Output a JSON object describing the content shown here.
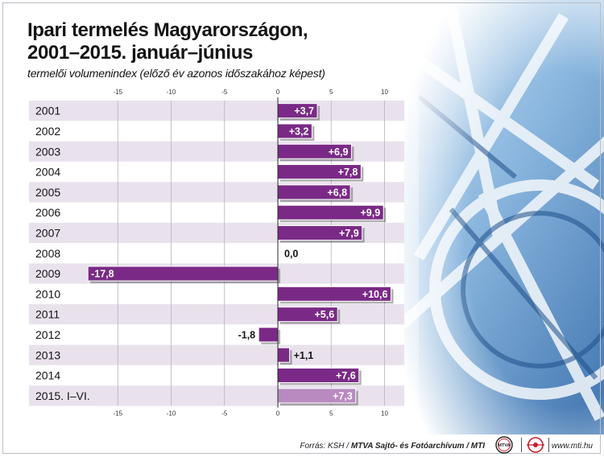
{
  "title_lines": [
    "Ipari termelés Magyarországon,",
    "2001–2015. január–június"
  ],
  "subtitle": "termelői volumenindex (előző év azonos időszakához képest)",
  "colors": {
    "bar": "#7a2a86",
    "bar_last": "#b88ac0",
    "row_odd": "#e8e0ec",
    "row_even": "#ffffff",
    "text": "#141414"
  },
  "chart_data": {
    "type": "bar",
    "orientation": "horizontal",
    "title": "Ipari termelés Magyarországon, 2001–2015. január–június",
    "subtitle": "termelői volumenindex (előző év azonos időszakához képest)",
    "categories": [
      "2001",
      "2002",
      "2003",
      "2004",
      "2005",
      "2006",
      "2007",
      "2008",
      "2009",
      "2010",
      "2011",
      "2012",
      "2013",
      "2014",
      "2015. I–VI."
    ],
    "values": [
      3.7,
      3.2,
      6.9,
      7.8,
      6.8,
      9.9,
      7.9,
      0.0,
      -17.8,
      10.6,
      5.6,
      -1.8,
      1.1,
      7.6,
      7.3
    ],
    "value_labels": [
      "+3,7",
      "+3,2",
      "+6,9",
      "+7,8",
      "+6,8",
      "+9,9",
      "+7,9",
      "0,0",
      "-17,8",
      "+10,6",
      "+5,6",
      "-1,8",
      "+1,1",
      "+7,6",
      "+7,3"
    ],
    "xticks": [
      -15,
      -10,
      -5,
      0,
      5,
      10
    ],
    "xtick_labels": [
      "-15",
      "-10",
      "-5",
      "0",
      "5",
      "10"
    ],
    "xlim": [
      -18.5,
      11.8
    ],
    "grid": true,
    "xlabel": "",
    "ylabel": ""
  },
  "footer": {
    "source_prefix": "Forrás: KSH / ",
    "source_bold": "MTVA Sajtó- és Fotóarchívum / MTI",
    "logo_left": "MTVA",
    "web": "www.mti.hu"
  },
  "icons": [
    "mtva-logo-icon",
    "mti-logo-icon"
  ]
}
